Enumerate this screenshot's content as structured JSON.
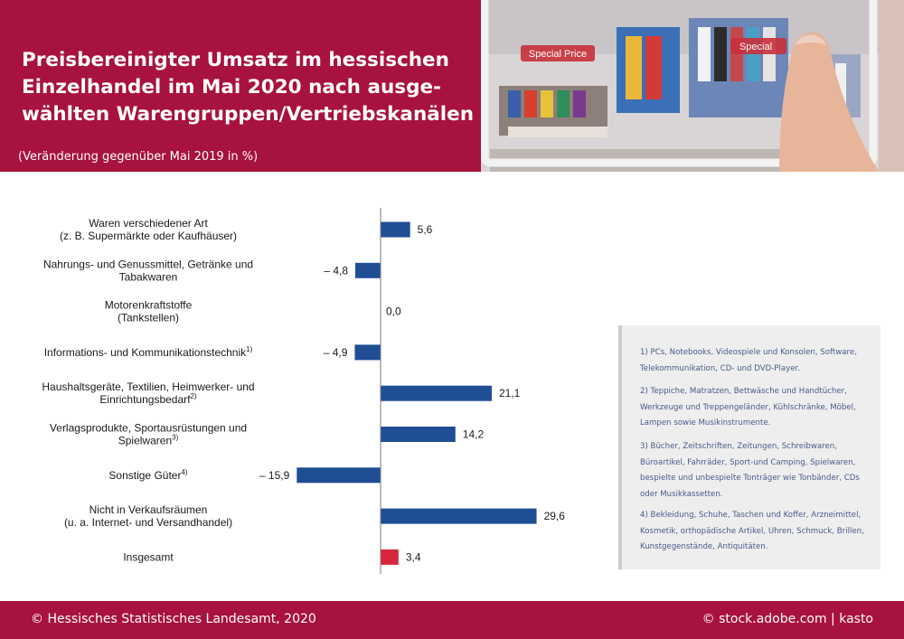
{
  "header": {
    "title_lines": [
      "Preisbereinigter Umsatz im hessischen",
      "Einzelhandel im Mai 2020 nach ausge-",
      "wählten Warengruppen/Vertriebskanälen"
    ],
    "subtitle": "(Veränderung gegenüber Mai 2019 in %)",
    "photo_tags": [
      "Special Price",
      "Special"
    ]
  },
  "colors": {
    "brand": "#a8123e",
    "bar": "#1f4e95",
    "total_bar": "#d7263d",
    "note_text": "#4a5a8a"
  },
  "chart_data": {
    "type": "bar",
    "orientation": "horizontal",
    "categories": [
      {
        "lines": [
          "Waren verschiedener Art",
          "(z. B. Supermärkte oder Kaufhäuser)"
        ],
        "sup": ""
      },
      {
        "lines": [
          "Nahrungs- und Genussmittel, Getränke und",
          "Tabakwaren"
        ],
        "sup": ""
      },
      {
        "lines": [
          "Motorenkraftstoffe",
          "(Tankstellen)"
        ],
        "sup": ""
      },
      {
        "lines": [
          "Informations- und Kommunikationstechnik"
        ],
        "sup": "1)"
      },
      {
        "lines": [
          "Haushaltsgeräte, Textilien, Heimwerker- und",
          "Einrichtungsbedarf"
        ],
        "sup": "2)"
      },
      {
        "lines": [
          "Verlagsprodukte, Sportausrüstungen und",
          "Spielwaren"
        ],
        "sup": "3)"
      },
      {
        "lines": [
          "Sonstige Güter"
        ],
        "sup": "4)"
      },
      {
        "lines": [
          "Nicht in Verkaufsräumen",
          "(u. a. Internet- und Versandhandel)"
        ],
        "sup": ""
      },
      {
        "lines": [
          "Insgesamt"
        ],
        "sup": ""
      }
    ],
    "values": [
      5.6,
      -4.8,
      0.0,
      -4.9,
      21.1,
      14.2,
      -15.9,
      29.6,
      3.4
    ],
    "value_labels": [
      "5,6",
      "– 4,8",
      "0,0",
      "– 4,9",
      "21,1",
      "14,2",
      "– 15,9",
      "29,6",
      "3,4"
    ],
    "highlight_index": 8,
    "xlim": [
      -16,
      30
    ]
  },
  "notes": [
    "1) PCs, Notebooks, Videospiele und Konsolen, Software, Telekommunikation, CD- und DVD-Player.",
    "2) Teppiche, Matratzen, Bettwäsche und Handtücher, Werkzeuge und Treppengeländer, Kühlschränke, Möbel, Lampen sowie Musikinstrumente.",
    "3) Bücher, Zeitschriften, Zeitungen, Schreibwaren, Büroartikel, Fahrräder, Sport-und Camping, Spielwaren, bespielte und unbespielte Tonträger wie Tonbänder, CDs oder Musikkassetten.",
    "4) Bekleidung, Schuhe, Taschen und Koffer, Arzneimittel, Kosmetik, orthopädische Artikel, Uhren, Schmuck, Brillen, Kunstgegenstände, Antiquitäten."
  ],
  "footer": {
    "left": "© Hessisches Statistisches Landesamt, 2020",
    "right": "© stock.adobe.com | kasto"
  }
}
